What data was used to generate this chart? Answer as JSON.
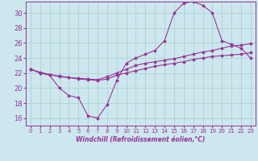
{
  "title": "",
  "xlabel": "Windchill (Refroidissement éolien,°C)",
  "ylabel": "",
  "background_color": "#cce8ee",
  "line_color": "#993399",
  "grid_color": "#aacccc",
  "xlim": [
    -0.5,
    23.5
  ],
  "ylim": [
    15.0,
    31.5
  ],
  "yticks": [
    16,
    18,
    20,
    22,
    24,
    26,
    28,
    30
  ],
  "xticks": [
    0,
    1,
    2,
    3,
    4,
    5,
    6,
    7,
    8,
    9,
    10,
    11,
    12,
    13,
    14,
    15,
    16,
    17,
    18,
    19,
    20,
    21,
    22,
    23
  ],
  "line1_x": [
    0,
    1,
    2,
    3,
    4,
    5,
    6,
    7,
    8,
    9,
    10,
    11,
    12,
    13,
    14,
    15,
    16,
    17,
    18,
    19,
    20,
    21,
    22,
    23
  ],
  "line1_y": [
    22.5,
    22.0,
    21.7,
    20.0,
    19.0,
    18.7,
    16.3,
    16.0,
    17.8,
    21.0,
    23.3,
    24.0,
    24.5,
    25.0,
    26.3,
    30.0,
    31.3,
    31.5,
    31.0,
    30.0,
    26.3,
    25.8,
    25.3,
    24.0
  ],
  "line2_x": [
    0,
    1,
    2,
    3,
    4,
    5,
    6,
    7,
    8,
    9,
    10,
    11,
    12,
    13,
    14,
    15,
    16,
    17,
    18,
    19,
    20,
    21,
    22,
    23
  ],
  "line2_y": [
    22.5,
    22.1,
    21.8,
    21.5,
    21.4,
    21.3,
    21.2,
    21.1,
    21.5,
    22.0,
    22.5,
    23.0,
    23.3,
    23.5,
    23.7,
    23.9,
    24.2,
    24.5,
    24.8,
    25.0,
    25.3,
    25.6,
    25.7,
    25.9
  ],
  "line3_x": [
    0,
    1,
    2,
    3,
    4,
    5,
    6,
    7,
    8,
    9,
    10,
    11,
    12,
    13,
    14,
    15,
    16,
    17,
    18,
    19,
    20,
    21,
    22,
    23
  ],
  "line3_y": [
    22.5,
    22.0,
    21.8,
    21.6,
    21.4,
    21.2,
    21.1,
    21.0,
    21.2,
    21.7,
    22.0,
    22.3,
    22.6,
    22.9,
    23.1,
    23.3,
    23.5,
    23.8,
    24.0,
    24.2,
    24.3,
    24.4,
    24.5,
    24.7
  ]
}
